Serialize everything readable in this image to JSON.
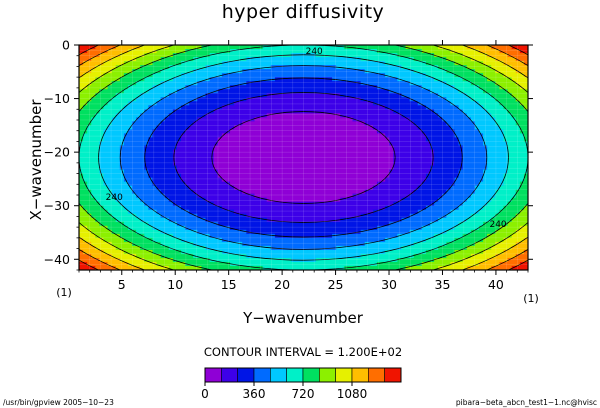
{
  "chart_data": {
    "type": "contour",
    "title": "hyper diffusivity",
    "xlabel": "Y−wavenumber",
    "ylabel": "X−wavenumber",
    "x_axis": {
      "range": [
        1,
        43
      ],
      "ticks": [
        5,
        10,
        15,
        20,
        25,
        30,
        35,
        40
      ],
      "tick_labels": [
        "5",
        "10",
        "15",
        "20",
        "25",
        "30",
        "35",
        "40"
      ],
      "corner_labels": [
        "(1)",
        "(1)"
      ]
    },
    "y_axis": {
      "range": [
        -42,
        0
      ],
      "ticks": [
        0,
        -10,
        -20,
        -30,
        -40
      ],
      "tick_labels": [
        "0",
        "−10",
        "−20",
        "−30",
        "−40"
      ]
    },
    "field": {
      "description_formula": "elliptic bowl",
      "center_x": 22,
      "center_y": -21,
      "edge_x_value": 720,
      "edge_y_value": 720,
      "max_value": 1440
    },
    "levels": [
      0,
      120,
      240,
      360,
      480,
      600,
      720,
      840,
      960,
      1080,
      1200,
      1320,
      1440
    ],
    "level_colors": [
      "#8f00d6",
      "#3d00e8",
      "#0015e6",
      "#006bff",
      "#00c8ff",
      "#00f0c8",
      "#00e060",
      "#8cf000",
      "#e6f000",
      "#ffbe00",
      "#ff6e00",
      "#f01400"
    ],
    "contour_labels": [
      {
        "text": "240",
        "x": 23,
        "y": -1.2
      },
      {
        "text": "240",
        "x": 4.3,
        "y": -28.5
      },
      {
        "text": "240",
        "x": 40.2,
        "y": -33.5
      }
    ],
    "contour_interval": "CONTOUR INTERVAL = 1.200E+02",
    "colorbar": {
      "range": [
        0,
        1440
      ],
      "ticks": [
        0,
        360,
        720,
        1080
      ],
      "tick_labels": [
        "0",
        "360",
        "720",
        "1080"
      ]
    }
  },
  "footer": {
    "left": "/usr/bin/gpview  2005−10−23",
    "right": "pibara−beta_abcn_test1−1.nc@hvisc"
  }
}
